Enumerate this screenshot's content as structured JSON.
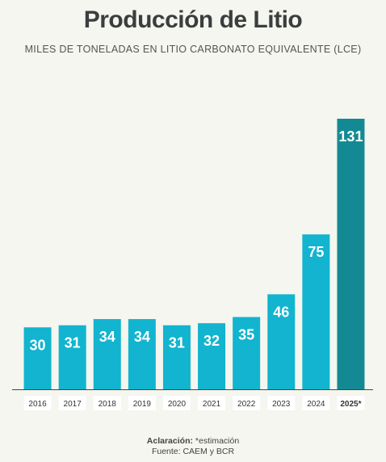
{
  "chart_data": {
    "type": "bar",
    "title": "Producción de Litio",
    "subtitle": "MILES DE TONELADAS EN LITIO CARBONATO EQUIVALENTE (LCE)",
    "categories": [
      "2016",
      "2017",
      "2018",
      "2019",
      "2020",
      "2021",
      "2022",
      "2023",
      "2024",
      "2025*"
    ],
    "values": [
      30,
      31,
      34,
      34,
      31,
      32,
      35,
      46,
      75,
      131
    ],
    "ylim": [
      0,
      131
    ],
    "grid": false,
    "legend": "none",
    "colors": {
      "bar": "#12b4cf",
      "highlight": "#138a93"
    },
    "highlight_index": 9
  },
  "note": {
    "label": "Aclaración:",
    "text": "*estimación",
    "source": "Fuente: CAEM y BCR"
  }
}
